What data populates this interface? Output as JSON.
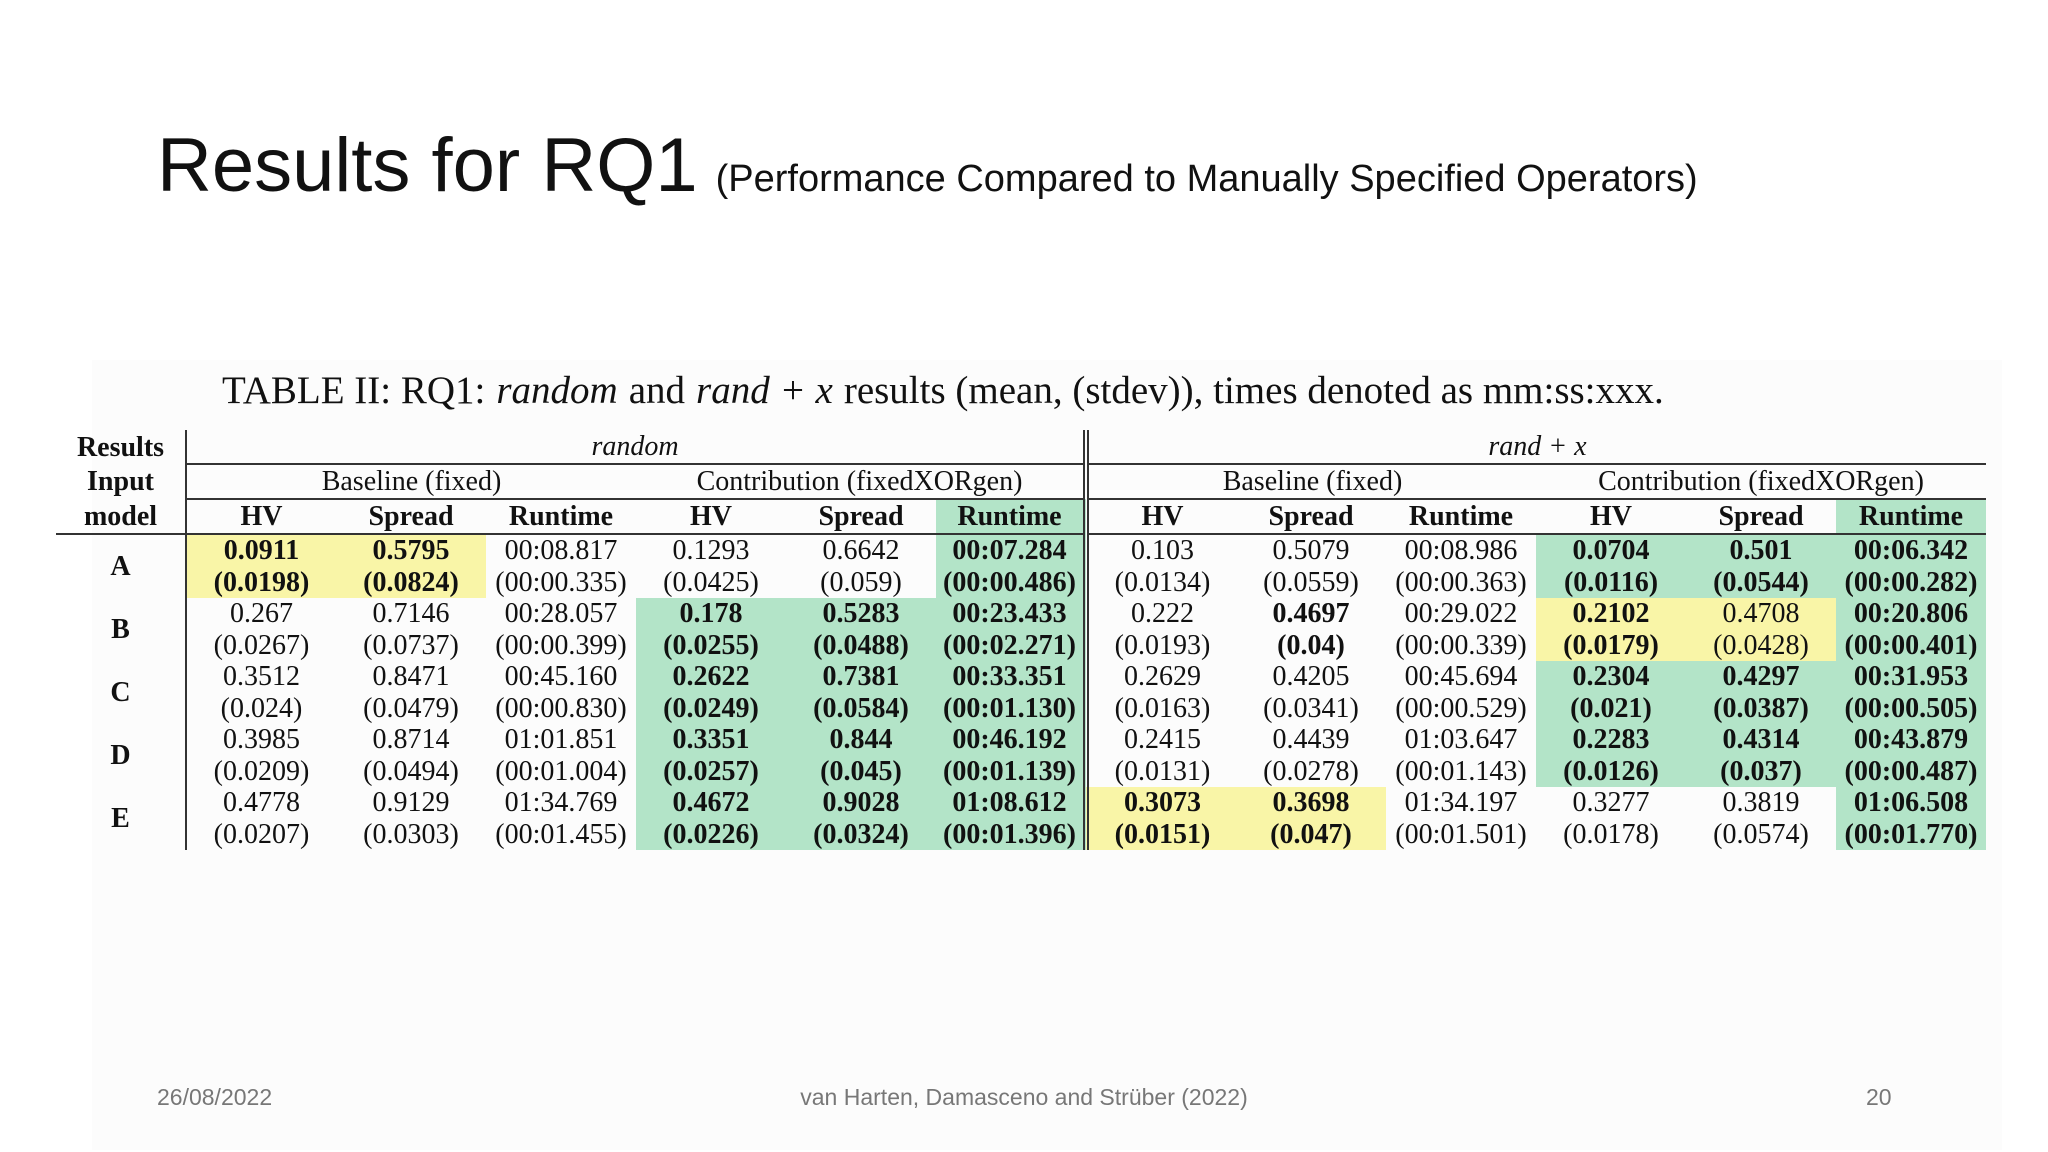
{
  "header": {
    "title": "Results for RQ1",
    "subtitle": "(Performance Compared to Manually Specified Operators)"
  },
  "caption": [
    {
      "text": "TABLE II: RQ1:"
    },
    {
      "text": "random",
      "italic": true
    },
    {
      "text": "and"
    },
    {
      "text": "rand + x",
      "italic": true
    },
    {
      "text": "results (mean, (stdev)), times denoted as mm:ss:xxx."
    }
  ],
  "table": {
    "corner": [
      "Results",
      "Input",
      "model"
    ],
    "groups": [
      {
        "label": "random",
        "subgroups": [
          {
            "label": "Baseline (fixed)",
            "columns": [
              {
                "label": "HV"
              },
              {
                "label": "Spread"
              },
              {
                "label": "Runtime"
              }
            ]
          },
          {
            "label": "Contribution (fixedXORgen)",
            "columns": [
              {
                "label": "HV"
              },
              {
                "label": "Spread"
              },
              {
                "label": "Runtime",
                "highlight": "#b3e4c8"
              }
            ]
          }
        ]
      },
      {
        "label": "rand + x",
        "subgroups": [
          {
            "label": "Baseline (fixed)",
            "columns": [
              {
                "label": "HV"
              },
              {
                "label": "Spread"
              },
              {
                "label": "Runtime"
              }
            ]
          },
          {
            "label": "Contribution (fixedXORgen)",
            "columns": [
              {
                "label": "HV"
              },
              {
                "label": "Spread"
              },
              {
                "label": "Runtime",
                "highlight": "#b3e4c8"
              }
            ]
          }
        ]
      }
    ],
    "rows": [
      {
        "label": "A",
        "cells": [
          {
            "mean": "0.0911",
            "stdev": "(0.0198)",
            "bold": true,
            "highlight": "#f9f5a7"
          },
          {
            "mean": "0.5795",
            "stdev": "(0.0824)",
            "bold": true,
            "highlight": "#f9f5a7"
          },
          {
            "mean": "00:08.817",
            "stdev": "(00:00.335)"
          },
          {
            "mean": "0.1293",
            "stdev": "(0.0425)"
          },
          {
            "mean": "0.6642",
            "stdev": "(0.059)"
          },
          {
            "mean": "00:07.284",
            "stdev": "(00:00.486)",
            "bold": true,
            "highlight": "#b3e4c8"
          },
          {
            "mean": "0.103",
            "stdev": "(0.0134)"
          },
          {
            "mean": "0.5079",
            "stdev": "(0.0559)"
          },
          {
            "mean": "00:08.986",
            "stdev": "(00:00.363)"
          },
          {
            "mean": "0.0704",
            "stdev": "(0.0116)",
            "bold": true,
            "highlight": "#b3e4c8"
          },
          {
            "mean": "0.501",
            "stdev": "(0.0544)",
            "bold": true,
            "highlight": "#b3e4c8"
          },
          {
            "mean": "00:06.342",
            "stdev": "(00:00.282)",
            "bold": true,
            "highlight": "#b3e4c8"
          }
        ]
      },
      {
        "label": "B",
        "cells": [
          {
            "mean": "0.267",
            "stdev": "(0.0267)"
          },
          {
            "mean": "0.7146",
            "stdev": "(0.0737)"
          },
          {
            "mean": "00:28.057",
            "stdev": "(00:00.399)"
          },
          {
            "mean": "0.178",
            "stdev": "(0.0255)",
            "bold": true,
            "highlight": "#b3e4c8"
          },
          {
            "mean": "0.5283",
            "stdev": "(0.0488)",
            "bold": true,
            "highlight": "#b3e4c8"
          },
          {
            "mean": "00:23.433",
            "stdev": "(00:02.271)",
            "bold": true,
            "highlight": "#b3e4c8"
          },
          {
            "mean": "0.222",
            "stdev": "(0.0193)"
          },
          {
            "mean": "0.4697",
            "stdev": "(0.04)",
            "bold": true
          },
          {
            "mean": "00:29.022",
            "stdev": "(00:00.339)"
          },
          {
            "mean": "0.2102",
            "stdev": "(0.0179)",
            "bold": true,
            "highlight": "#f9f5a7"
          },
          {
            "mean": "0.4708",
            "stdev": "(0.0428)",
            "highlight": "#f9f5a7"
          },
          {
            "mean": "00:20.806",
            "stdev": "(00:00.401)",
            "bold": true,
            "highlight": "#b3e4c8"
          }
        ]
      },
      {
        "label": "C",
        "cells": [
          {
            "mean": "0.3512",
            "stdev": "(0.024)"
          },
          {
            "mean": "0.8471",
            "stdev": "(0.0479)"
          },
          {
            "mean": "00:45.160",
            "stdev": "(00:00.830)"
          },
          {
            "mean": "0.2622",
            "stdev": "(0.0249)",
            "bold": true,
            "highlight": "#b3e4c8"
          },
          {
            "mean": "0.7381",
            "stdev": "(0.0584)",
            "bold": true,
            "highlight": "#b3e4c8"
          },
          {
            "mean": "00:33.351",
            "stdev": "(00:01.130)",
            "bold": true,
            "highlight": "#b3e4c8"
          },
          {
            "mean": "0.2629",
            "stdev": "(0.0163)"
          },
          {
            "mean": "0.4205",
            "stdev": "(0.0341)"
          },
          {
            "mean": "00:45.694",
            "stdev": "(00:00.529)"
          },
          {
            "mean": "0.2304",
            "stdev": "(0.021)",
            "bold": true,
            "highlight": "#b3e4c8"
          },
          {
            "mean": "0.4297",
            "stdev": "(0.0387)",
            "bold": true,
            "highlight": "#b3e4c8"
          },
          {
            "mean": "00:31.953",
            "stdev": "(00:00.505)",
            "bold": true,
            "highlight": "#b3e4c8"
          }
        ]
      },
      {
        "label": "D",
        "cells": [
          {
            "mean": "0.3985",
            "stdev": "(0.0209)"
          },
          {
            "mean": "0.8714",
            "stdev": "(0.0494)"
          },
          {
            "mean": "01:01.851",
            "stdev": "(00:01.004)"
          },
          {
            "mean": "0.3351",
            "stdev": "(0.0257)",
            "bold": true,
            "highlight": "#b3e4c8"
          },
          {
            "mean": "0.844",
            "stdev": "(0.045)",
            "bold": true,
            "highlight": "#b3e4c8"
          },
          {
            "mean": "00:46.192",
            "stdev": "(00:01.139)",
            "bold": true,
            "highlight": "#b3e4c8"
          },
          {
            "mean": "0.2415",
            "stdev": "(0.0131)"
          },
          {
            "mean": "0.4439",
            "stdev": "(0.0278)"
          },
          {
            "mean": "01:03.647",
            "stdev": "(00:01.143)"
          },
          {
            "mean": "0.2283",
            "stdev": "(0.0126)",
            "bold": true,
            "highlight": "#b3e4c8"
          },
          {
            "mean": "0.4314",
            "stdev": "(0.037)",
            "bold": true,
            "highlight": "#b3e4c8"
          },
          {
            "mean": "00:43.879",
            "stdev": "(00:00.487)",
            "bold": true,
            "highlight": "#b3e4c8"
          }
        ]
      },
      {
        "label": "E",
        "cells": [
          {
            "mean": "0.4778",
            "stdev": "(0.0207)"
          },
          {
            "mean": "0.9129",
            "stdev": "(0.0303)"
          },
          {
            "mean": "01:34.769",
            "stdev": "(00:01.455)"
          },
          {
            "mean": "0.4672",
            "stdev": "(0.0226)",
            "bold": true,
            "highlight": "#b3e4c8"
          },
          {
            "mean": "0.9028",
            "stdev": "(0.0324)",
            "bold": true,
            "highlight": "#b3e4c8"
          },
          {
            "mean": "01:08.612",
            "stdev": "(00:01.396)",
            "bold": true,
            "highlight": "#b3e4c8"
          },
          {
            "mean": "0.3073",
            "stdev": "(0.0151)",
            "bold": true,
            "highlight": "#f9f5a7"
          },
          {
            "mean": "0.3698",
            "stdev": "(0.047)",
            "bold": true,
            "highlight": "#f9f5a7"
          },
          {
            "mean": "01:34.197",
            "stdev": "(00:01.501)"
          },
          {
            "mean": "0.3277",
            "stdev": "(0.0178)"
          },
          {
            "mean": "0.3819",
            "stdev": "(0.0574)"
          },
          {
            "mean": "01:06.508",
            "stdev": "(00:01.770)",
            "bold": true,
            "highlight": "#b3e4c8"
          }
        ]
      }
    ]
  },
  "footer": {
    "date": "26/08/2022",
    "authors": "van Harten, Damasceno and Strüber (2022)",
    "page": "20"
  }
}
